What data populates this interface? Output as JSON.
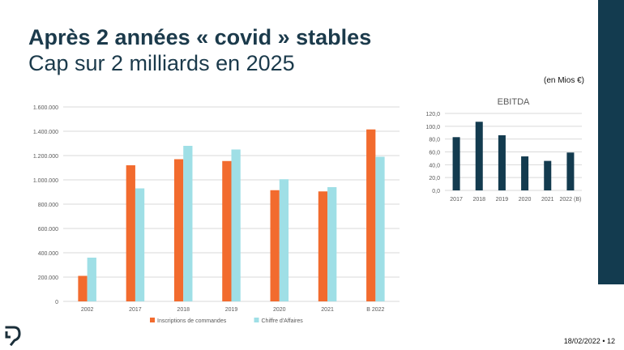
{
  "slide": {
    "title": "Après 2 années « covid » stables",
    "subtitle": "Cap sur 2 milliards en 2025",
    "unit_note": "(en Mios €)",
    "footer_date": "18/02/2022",
    "footer_sep": "•",
    "page_number": "12",
    "accent_color": "#133b4f",
    "logo_icon": "brand-logo-icon"
  },
  "chart_data": [
    {
      "type": "bar",
      "title": "",
      "categories": [
        "2002",
        "2017",
        "2018",
        "2019",
        "2020",
        "2021",
        "B 2022"
      ],
      "series": [
        {
          "name": "Inscriptions de commandes",
          "color": "#f26b2e",
          "values": [
            210000,
            1120000,
            1170000,
            1155000,
            915000,
            905000,
            1415000
          ]
        },
        {
          "name": "Chiffre d'Affaires",
          "color": "#9fdfe6",
          "values": [
            360000,
            930000,
            1280000,
            1250000,
            1005000,
            940000,
            1190000
          ]
        }
      ],
      "yticks": [
        "0",
        "200.000",
        "400.000",
        "600.000",
        "800.000",
        "1.000.000",
        "1.200.000",
        "1.400.000",
        "1.600.000"
      ],
      "ylim": [
        0,
        1600000
      ],
      "grid": true,
      "legend": "bottom",
      "xlabel": "",
      "ylabel": ""
    },
    {
      "type": "bar",
      "title": "EBITDA",
      "categories": [
        "2017",
        "2018",
        "2019",
        "2020",
        "2021",
        "2022 (B)"
      ],
      "series": [
        {
          "name": "",
          "color": "#133b4f",
          "values": [
            83,
            107,
            86,
            53,
            46,
            59
          ]
        }
      ],
      "yticks": [
        "0,0",
        "20,0",
        "40,0",
        "60,0",
        "80,0",
        "100,0",
        "120,0"
      ],
      "ylim": [
        0,
        120
      ],
      "grid": true,
      "legend": "none",
      "xlabel": "",
      "ylabel": ""
    }
  ]
}
